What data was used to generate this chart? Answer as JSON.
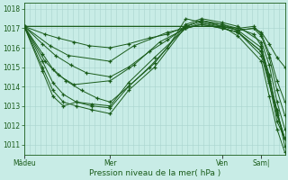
{
  "bg_color": "#c8ece6",
  "grid_color": "#a8d4ce",
  "line_color": "#1a5c1a",
  "marker_color": "#1a5c1a",
  "xlabel": "Pression niveau de la mer( hPa )",
  "xlabel_color": "#1a5c1a",
  "tick_color": "#1a5c1a",
  "ylim": [
    1010.5,
    1018.3
  ],
  "yticks": [
    1011,
    1012,
    1013,
    1014,
    1015,
    1016,
    1017,
    1018
  ],
  "xtick_labels": [
    "Mâdeu",
    "Mer",
    "Ven",
    "Sam|"
  ],
  "xtick_positions": [
    0.0,
    0.33,
    0.76,
    0.91
  ],
  "n_vertical_grid": 48,
  "lines": [
    {
      "x": [
        0.0,
        0.08,
        0.13,
        0.19,
        0.25,
        0.33,
        0.4,
        0.48,
        0.55,
        0.62,
        0.68,
        0.76,
        0.82,
        0.88,
        0.91,
        0.94,
        0.97,
        1.0
      ],
      "y": [
        1017.1,
        1016.7,
        1016.5,
        1016.3,
        1016.1,
        1016.0,
        1016.2,
        1016.5,
        1016.7,
        1017.1,
        1017.4,
        1017.1,
        1016.9,
        1017.0,
        1016.8,
        1016.2,
        1015.5,
        1015.0
      ]
    },
    {
      "x": [
        0.0,
        0.07,
        0.12,
        0.18,
        0.24,
        0.33,
        0.4,
        0.48,
        0.55,
        0.62,
        0.68,
        0.76,
        0.82,
        0.88,
        0.91,
        0.94,
        0.97,
        1.0
      ],
      "y": [
        1017.1,
        1016.2,
        1015.6,
        1015.1,
        1014.7,
        1014.5,
        1015.0,
        1015.8,
        1016.4,
        1017.1,
        1017.4,
        1017.2,
        1017.0,
        1017.1,
        1016.7,
        1015.7,
        1014.3,
        1013.2
      ]
    },
    {
      "x": [
        0.0,
        0.07,
        0.11,
        0.16,
        0.22,
        0.28,
        0.33,
        0.4,
        0.48,
        0.55,
        0.62,
        0.68,
        0.76,
        0.82,
        0.88,
        0.91,
        0.94,
        0.97,
        1.0
      ],
      "y": [
        1017.1,
        1015.7,
        1014.9,
        1014.3,
        1013.8,
        1013.4,
        1013.2,
        1014.0,
        1015.0,
        1016.0,
        1017.5,
        1017.3,
        1017.1,
        1016.9,
        1017.0,
        1016.6,
        1015.5,
        1013.8,
        1012.5
      ]
    },
    {
      "x": [
        0.0,
        0.07,
        0.11,
        0.15,
        0.2,
        0.26,
        0.33,
        0.4,
        0.5,
        0.62,
        0.68,
        0.76,
        0.82,
        0.91,
        0.94,
        0.97,
        1.0
      ],
      "y": [
        1017.1,
        1015.3,
        1014.2,
        1013.6,
        1013.2,
        1013.0,
        1012.9,
        1014.0,
        1015.2,
        1017.2,
        1017.5,
        1017.3,
        1017.1,
        1016.3,
        1015.1,
        1013.2,
        1011.8
      ]
    },
    {
      "x": [
        0.0,
        0.07,
        0.11,
        0.15,
        0.2,
        0.26,
        0.33,
        0.4,
        0.5,
        0.62,
        0.68,
        0.76,
        0.82,
        0.91,
        0.94,
        0.97,
        1.0
      ],
      "y": [
        1017.1,
        1015.0,
        1013.8,
        1013.2,
        1013.0,
        1012.8,
        1012.6,
        1013.8,
        1015.0,
        1017.1,
        1017.4,
        1017.2,
        1016.9,
        1016.0,
        1014.6,
        1012.5,
        1011.3
      ]
    },
    {
      "x": [
        0.0,
        0.07,
        0.11,
        0.15,
        0.2,
        0.26,
        0.33,
        0.4,
        0.5,
        0.62,
        0.68,
        0.76,
        0.82,
        0.91,
        0.94,
        0.97,
        1.0
      ],
      "y": [
        1017.1,
        1014.8,
        1013.5,
        1013.0,
        1013.2,
        1013.1,
        1013.0,
        1014.2,
        1015.5,
        1017.0,
        1017.3,
        1017.0,
        1016.8,
        1015.8,
        1014.2,
        1012.2,
        1011.3
      ]
    },
    {
      "x": [
        0.0,
        0.08,
        0.13,
        0.19,
        0.33,
        0.42,
        0.52,
        0.62,
        0.68,
        0.76,
        0.82,
        0.91,
        0.94,
        0.97,
        1.0
      ],
      "y": [
        1017.1,
        1015.3,
        1014.6,
        1014.1,
        1014.3,
        1015.1,
        1016.3,
        1017.0,
        1017.2,
        1017.0,
        1016.8,
        1015.8,
        1014.5,
        1012.7,
        1011.3
      ]
    },
    {
      "x": [
        0.0,
        0.1,
        0.17,
        0.33,
        0.42,
        0.55,
        0.62,
        0.68,
        0.76,
        0.82,
        0.91,
        0.97,
        1.0
      ],
      "y": [
        1017.1,
        1016.1,
        1015.6,
        1015.3,
        1016.1,
        1016.8,
        1017.0,
        1017.2,
        1017.0,
        1016.8,
        1015.6,
        1012.6,
        1011.3
      ]
    },
    {
      "x": [
        0.0,
        0.76,
        0.82,
        0.88,
        0.91,
        0.94,
        0.97,
        1.0
      ],
      "y": [
        1017.1,
        1017.1,
        1017.0,
        1016.7,
        1016.1,
        1014.3,
        1012.8,
        1010.9
      ]
    },
    {
      "x": [
        0.0,
        0.76,
        0.82,
        0.91,
        0.94,
        0.97,
        1.0
      ],
      "y": [
        1017.1,
        1017.1,
        1016.6,
        1015.3,
        1013.5,
        1011.8,
        1010.6
      ]
    }
  ]
}
